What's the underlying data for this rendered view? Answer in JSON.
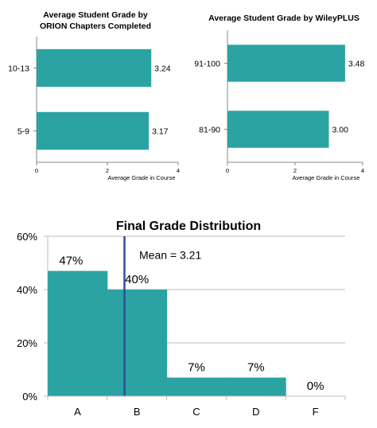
{
  "charts": {
    "orion": {
      "title_line1": "Average Student Grade by",
      "title_line2": "ORION Chapters Completed"
    },
    "wiley": {
      "title": "Average Student Grade by WileyPLUS"
    },
    "distribution": {
      "title": "Final Grade Distribution",
      "mean_label": "Mean = 3.21"
    }
  },
  "colors": {
    "bar": "#2ba3a3",
    "mean_line": "#2e4f9c",
    "grid": "#bdbdbd",
    "axis": "#888888"
  },
  "chart_data": [
    {
      "type": "bar",
      "orientation": "horizontal",
      "title": "Average Student Grade by ORION Chapters Completed",
      "categories": [
        "10-13",
        "5-9"
      ],
      "values": [
        3.24,
        3.17
      ],
      "data_labels": [
        "3.24",
        "3.17"
      ],
      "xlabel": "Average Grade in Course",
      "ylabel": "",
      "xlim": [
        0,
        4
      ],
      "xticks": [
        "0",
        "2",
        "4"
      ],
      "grid": false
    },
    {
      "type": "bar",
      "orientation": "horizontal",
      "title": "Average Student Grade by WileyPLUS",
      "categories": [
        "91-100",
        "81-90"
      ],
      "values": [
        3.48,
        3.0
      ],
      "data_labels": [
        "3.48",
        "3.00"
      ],
      "xlabel": "Average Grade in Course",
      "ylabel": "",
      "xlim": [
        0,
        4
      ],
      "xticks": [
        "0",
        "2",
        "4"
      ],
      "grid": false
    },
    {
      "type": "bar",
      "orientation": "vertical",
      "title": "Final Grade Distribution",
      "categories": [
        "A",
        "B",
        "C",
        "D",
        "F"
      ],
      "values": [
        47,
        40,
        7,
        7,
        0
      ],
      "data_labels": [
        "47%",
        "40%",
        "7%",
        "7%",
        "0%"
      ],
      "xlabel": "",
      "ylabel": "",
      "ylim": [
        0,
        60
      ],
      "yticks": [
        "0%",
        "20%",
        "40%",
        "60%"
      ],
      "grid": true,
      "annotation": {
        "text": "Mean = 3.21",
        "x_value": 3.21
      }
    }
  ]
}
